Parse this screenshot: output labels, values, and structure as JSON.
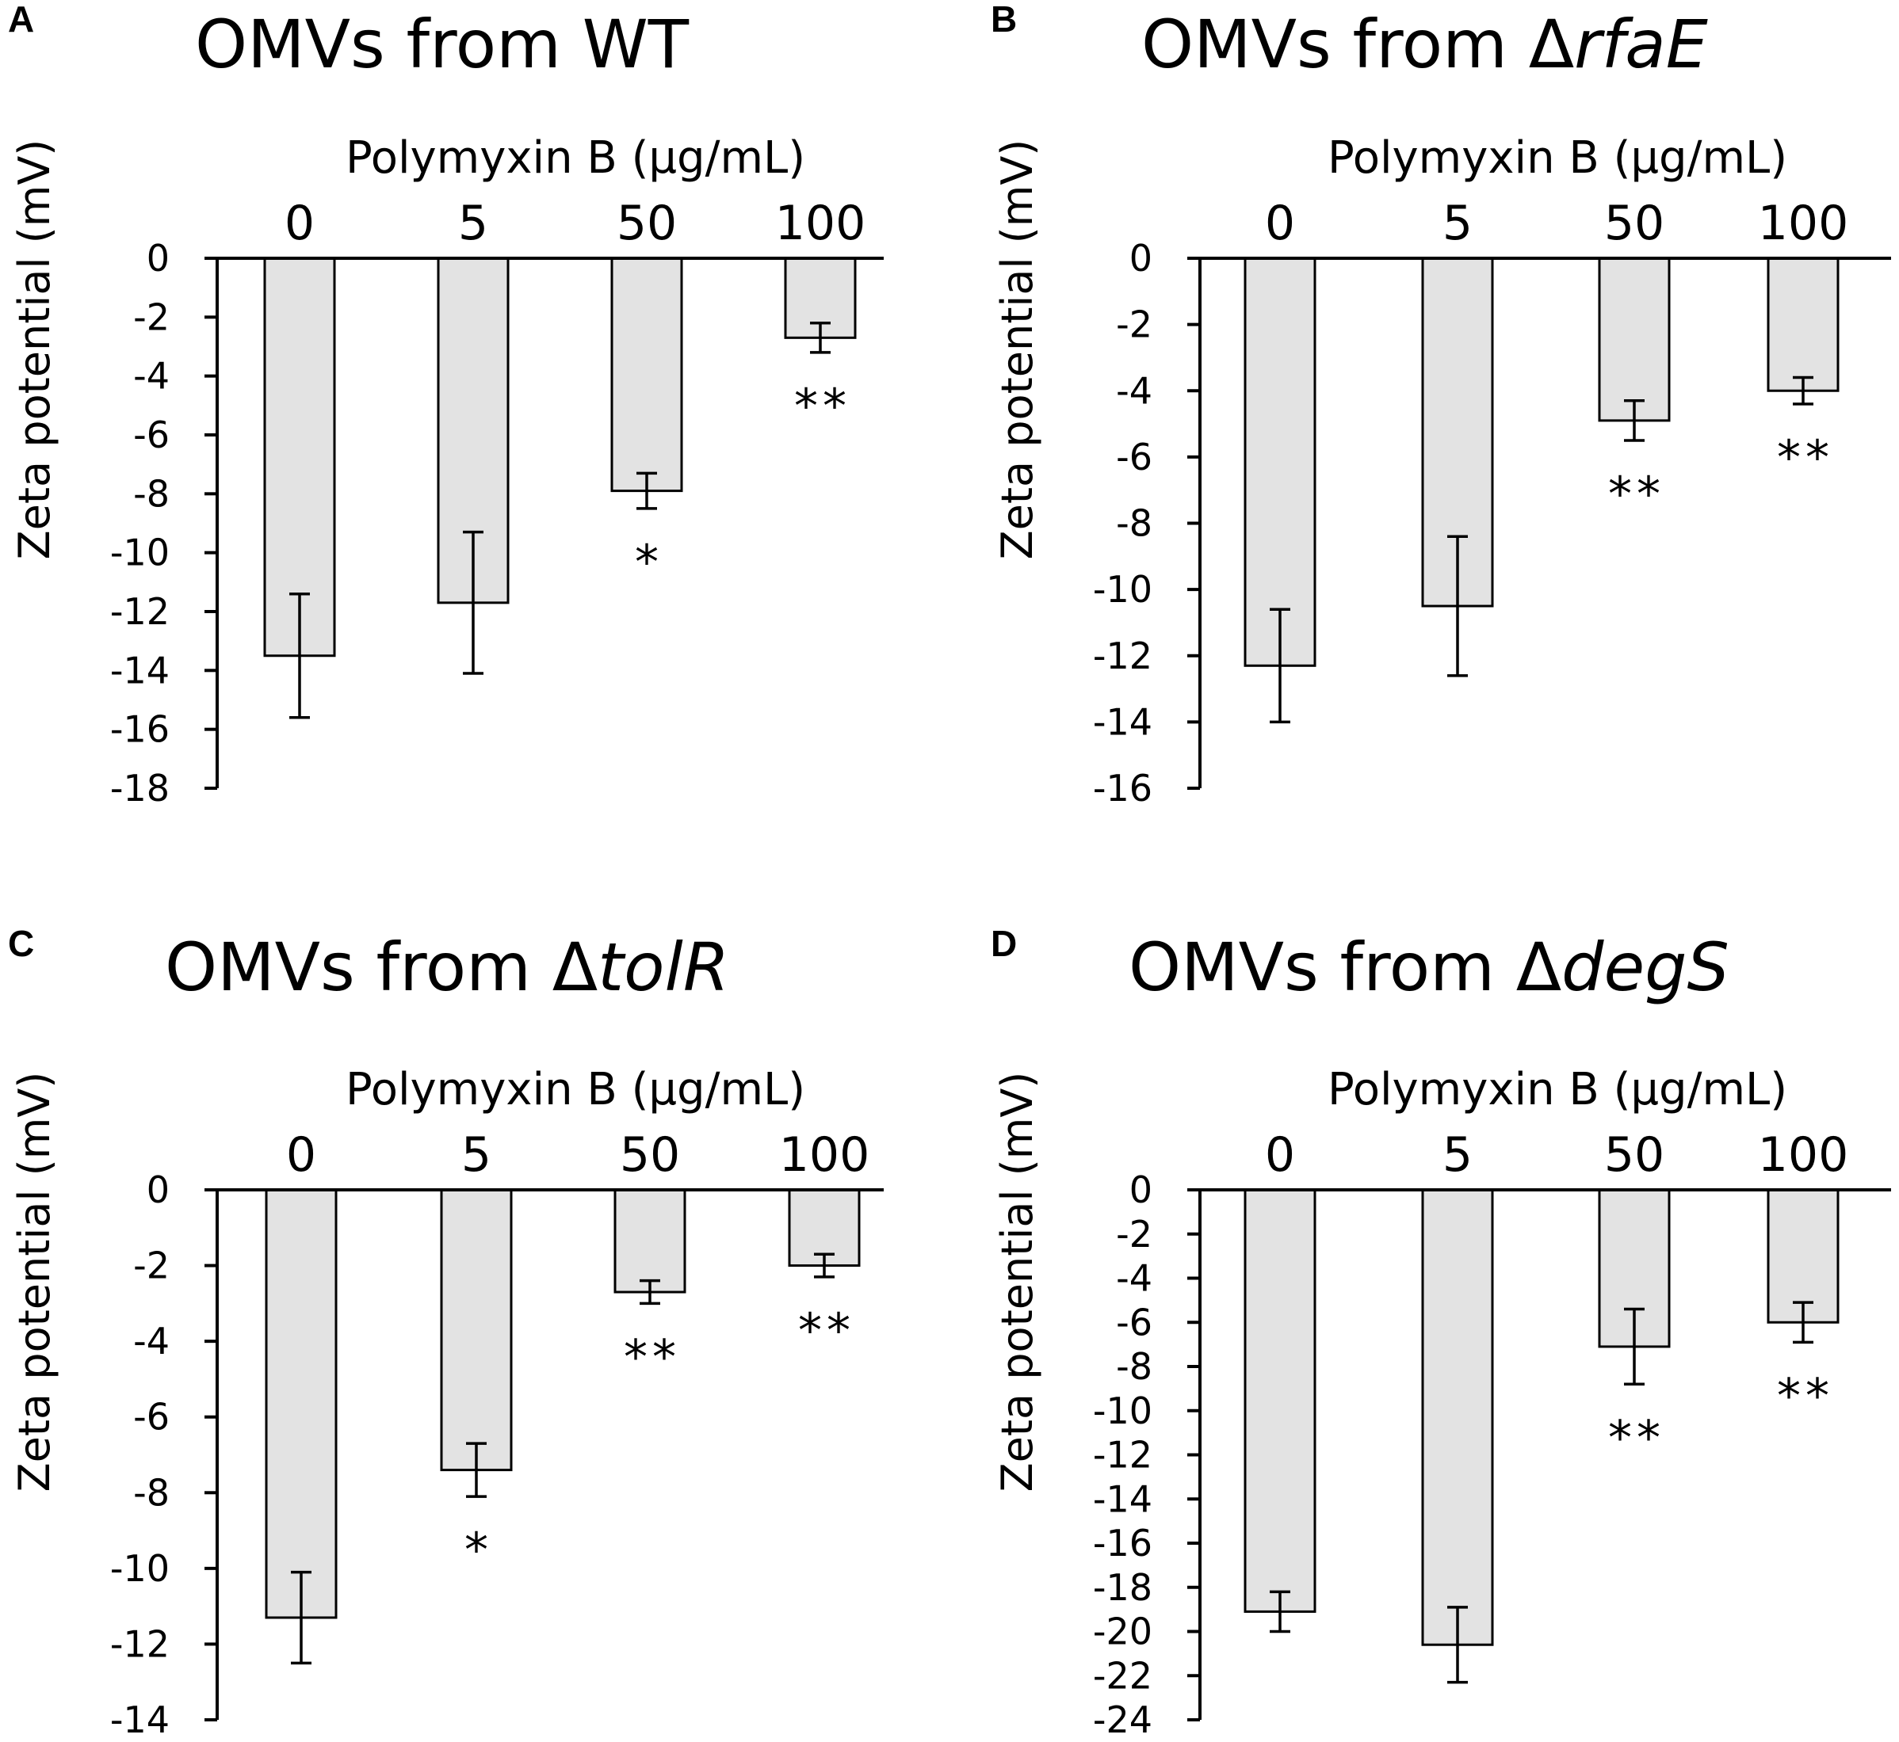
{
  "chart_data": [
    {
      "type": "bar",
      "panel": "A",
      "title": "OMVs from WT",
      "title_prefix": "OMVs from ",
      "title_italic": "",
      "title_delta": "",
      "plain_title": "OMVs from WT",
      "xlabel": "Polymyxin B (μg/mL)",
      "ylabel": "Zeta potential (mV)",
      "categories": [
        "0",
        "5",
        "50",
        "100"
      ],
      "values": [
        -13.5,
        -11.7,
        -7.9,
        -2.7
      ],
      "errors": [
        2.1,
        2.4,
        0.6,
        0.5
      ],
      "significance": [
        "",
        "",
        "*",
        "**"
      ],
      "ylim": [
        -18,
        0
      ],
      "yticks": [
        0,
        -2,
        -4,
        -6,
        -8,
        -10,
        -12,
        -14,
        -16,
        -18
      ]
    },
    {
      "type": "bar",
      "panel": "B",
      "title": "OMVs from ΔrfaE",
      "title_prefix": "OMVs from ",
      "title_delta": "Δ",
      "title_italic": "rfaE",
      "xlabel": "Polymyxin B (μg/mL)",
      "ylabel": "Zeta potential (mV)",
      "categories": [
        "0",
        "5",
        "50",
        "100"
      ],
      "values": [
        -12.3,
        -10.5,
        -4.9,
        -4.0
      ],
      "errors": [
        1.7,
        2.1,
        0.6,
        0.4
      ],
      "significance": [
        "",
        "",
        "**",
        "**"
      ],
      "ylim": [
        -16,
        0
      ],
      "yticks": [
        0,
        -2,
        -4,
        -6,
        -8,
        -10,
        -12,
        -14,
        -16
      ]
    },
    {
      "type": "bar",
      "panel": "C",
      "title": "OMVs from ΔtolR",
      "title_prefix": "OMVs from ",
      "title_delta": "Δ",
      "title_italic": "tolR",
      "xlabel": "Polymyxin B (μg/mL)",
      "ylabel": "Zeta potential (mV)",
      "categories": [
        "0",
        "5",
        "50",
        "100"
      ],
      "values": [
        -11.3,
        -7.4,
        -2.7,
        -2.0
      ],
      "errors": [
        1.2,
        0.7,
        0.3,
        0.3
      ],
      "significance": [
        "",
        "*",
        "**",
        "**"
      ],
      "ylim": [
        -14,
        0
      ],
      "yticks": [
        0,
        -2,
        -4,
        -6,
        -8,
        -10,
        -12,
        -14
      ]
    },
    {
      "type": "bar",
      "panel": "D",
      "title": "OMVs from ΔdegS",
      "title_prefix": "OMVs from ",
      "title_delta": "Δ",
      "title_italic": "degS",
      "xlabel": "Polymyxin B (μg/mL)",
      "ylabel": "Zeta potential (mV)",
      "categories": [
        "0",
        "5",
        "50",
        "100"
      ],
      "values": [
        -19.1,
        -20.6,
        -7.1,
        -6.0
      ],
      "errors": [
        0.9,
        1.7,
        1.7,
        0.9
      ],
      "significance": [
        "",
        "",
        "**",
        "**"
      ],
      "ylim": [
        -24,
        0
      ],
      "yticks": [
        0,
        -2,
        -4,
        -6,
        -8,
        -10,
        -12,
        -14,
        -16,
        -18,
        -20,
        -22,
        -24
      ]
    }
  ]
}
